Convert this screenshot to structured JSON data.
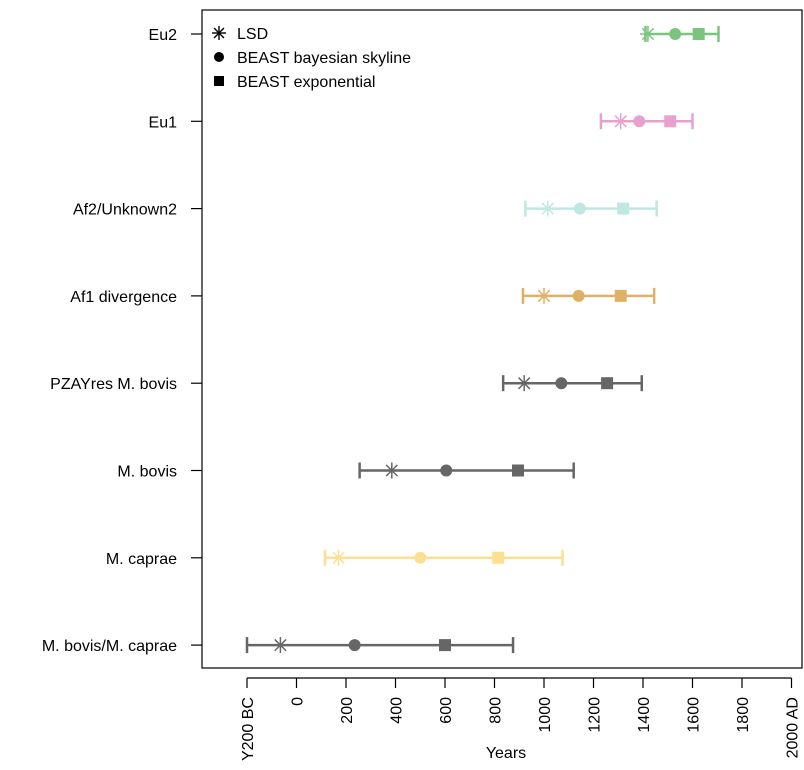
{
  "chart_data": {
    "type": "scatter",
    "xlabel": "Years",
    "xlim": [
      -200,
      2025
    ],
    "x_ticks": [
      {
        "value": -200,
        "label": "Y200 BC"
      },
      {
        "value": 0,
        "label": "0"
      },
      {
        "value": 200,
        "label": "200"
      },
      {
        "value": 400,
        "label": "400"
      },
      {
        "value": 600,
        "label": "600"
      },
      {
        "value": 800,
        "label": "800"
      },
      {
        "value": 1000,
        "label": "1000"
      },
      {
        "value": 1200,
        "label": "1200"
      },
      {
        "value": 1400,
        "label": "1400"
      },
      {
        "value": 1600,
        "label": "1600"
      },
      {
        "value": 1800,
        "label": "1800"
      },
      {
        "value": 2000,
        "label": "2000 AD"
      }
    ],
    "legend": {
      "placement": "top-left",
      "entries": [
        {
          "marker": "asterisk",
          "label": "LSD"
        },
        {
          "marker": "circle",
          "label": "BEAST bayesian skyline"
        },
        {
          "marker": "square",
          "label": "BEAST exponential"
        }
      ]
    },
    "series": [
      {
        "label": "Eu2",
        "color": "#7bc47f",
        "ci": [
          1410,
          1705
        ],
        "lsd": 1420,
        "skyline": 1530,
        "exponential": 1625
      },
      {
        "label": "Eu1",
        "color": "#e7a1cd",
        "ci": [
          1230,
          1600
        ],
        "lsd": 1310,
        "skyline": 1385,
        "exponential": 1510
      },
      {
        "label": "Af2/Unknown2",
        "color": "#bfe8e2",
        "ci": [
          925,
          1455
        ],
        "lsd": 1015,
        "skyline": 1145,
        "exponential": 1320
      },
      {
        "label": "Af1 divergence",
        "color": "#dfb166",
        "ci": [
          915,
          1445
        ],
        "lsd": 1000,
        "skyline": 1140,
        "exponential": 1310
      },
      {
        "label": "PZAYres M. bovis",
        "color": "#666666",
        "ci": [
          835,
          1395
        ],
        "lsd": 920,
        "skyline": 1070,
        "exponential": 1255
      },
      {
        "label": "M. bovis",
        "color": "#666666",
        "ci": [
          255,
          1120
        ],
        "lsd": 385,
        "skyline": 605,
        "exponential": 895
      },
      {
        "label": "M. caprae",
        "color": "#fbdf93",
        "ci": [
          115,
          1075
        ],
        "lsd": 170,
        "skyline": 500,
        "exponential": 815
      },
      {
        "label": "M. bovis/M. caprae",
        "color": "#666666",
        "ci": [
          -200,
          875
        ],
        "lsd": -65,
        "skyline": 235,
        "exponential": 600
      }
    ]
  }
}
